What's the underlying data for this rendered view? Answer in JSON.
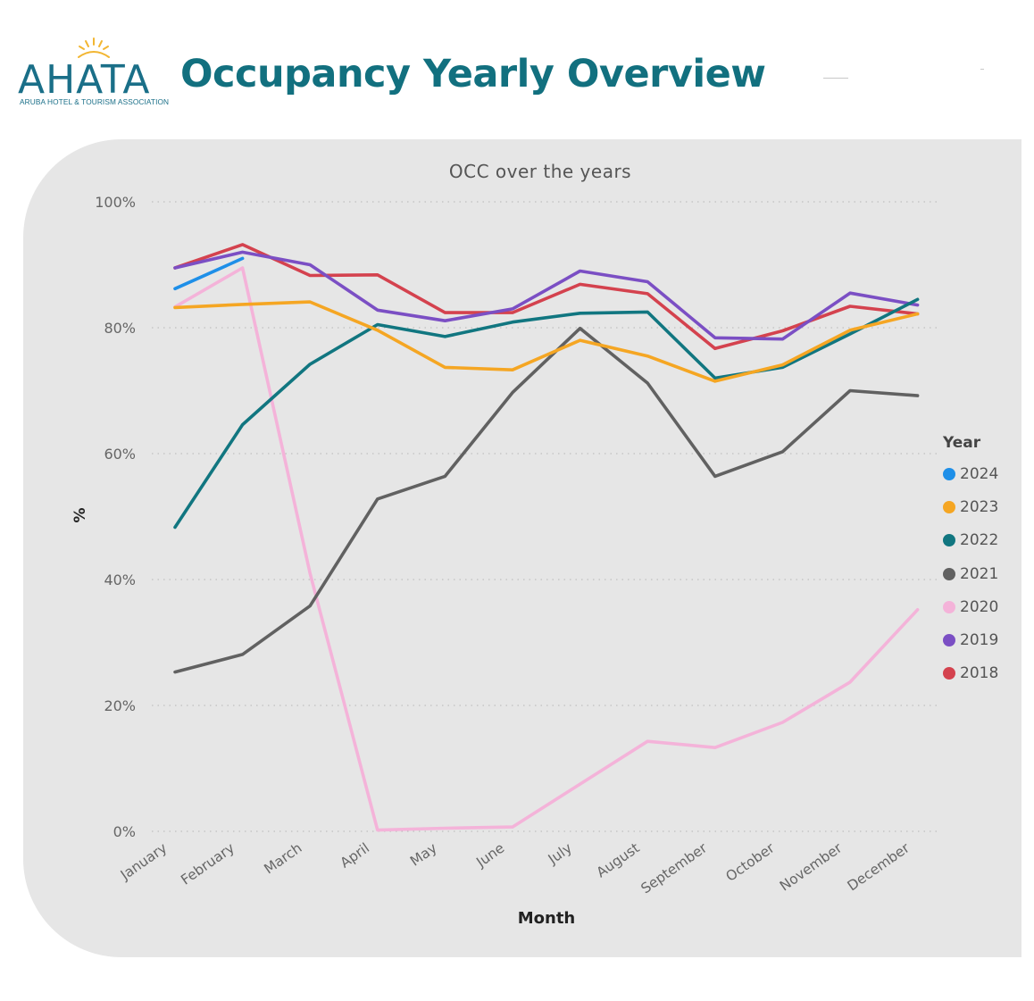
{
  "header": {
    "logo_text": "AHATA",
    "logo_subtext": "ARUBA HOTEL & TOURISM ASSOCIATION",
    "title": "Occupancy Yearly Overview"
  },
  "colors": {
    "title": "#12707f",
    "logo": "#1a6f88",
    "logo_sun": "#f2b632",
    "panel": "#e6e6e6"
  },
  "chart_data": {
    "type": "line",
    "title": "OCC over the years",
    "xlabel": "Month",
    "ylabel": "%",
    "ylim": [
      0,
      100
    ],
    "yticks": [
      "0%",
      "20%",
      "40%",
      "60%",
      "80%",
      "100%"
    ],
    "grid": true,
    "legend_title": "Year",
    "legend_position": "right",
    "categories": [
      "January",
      "February",
      "March",
      "April",
      "May",
      "June",
      "July",
      "August",
      "September",
      "October",
      "November",
      "December"
    ],
    "series": [
      {
        "name": "2024",
        "color": "#1e8fe8",
        "values": [
          86.2,
          91.0,
          null,
          null,
          null,
          null,
          null,
          null,
          null,
          null,
          null,
          null
        ]
      },
      {
        "name": "2023",
        "color": "#f5a623",
        "values": [
          83.2,
          83.7,
          84.1,
          79.6,
          73.7,
          73.3,
          78.0,
          75.5,
          71.5,
          74.1,
          79.6,
          82.2
        ]
      },
      {
        "name": "2022",
        "color": "#117680",
        "values": [
          48.3,
          64.6,
          74.2,
          80.5,
          78.6,
          80.9,
          82.3,
          82.5,
          72.0,
          73.7,
          79.0,
          84.5
        ]
      },
      {
        "name": "2021",
        "color": "#616161",
        "values": [
          25.3,
          28.1,
          35.8,
          52.8,
          56.4,
          69.7,
          79.9,
          71.2,
          56.4,
          60.3,
          70.0,
          69.2
        ]
      },
      {
        "name": "2020",
        "color": "#f4b3d9",
        "values": [
          83.3,
          89.5,
          41.0,
          0.2,
          0.5,
          0.7,
          7.5,
          14.3,
          13.3,
          17.3,
          23.7,
          35.2
        ]
      },
      {
        "name": "2019",
        "color": "#7b4fc4",
        "values": [
          89.5,
          92.0,
          90.0,
          82.8,
          81.1,
          83.0,
          89.0,
          87.3,
          78.4,
          78.2,
          85.5,
          83.6
        ]
      },
      {
        "name": "2018",
        "color": "#d4424e",
        "values": [
          89.5,
          93.2,
          88.3,
          88.4,
          82.4,
          82.4,
          86.9,
          85.4,
          76.7,
          79.5,
          83.4,
          82.2
        ]
      }
    ]
  }
}
